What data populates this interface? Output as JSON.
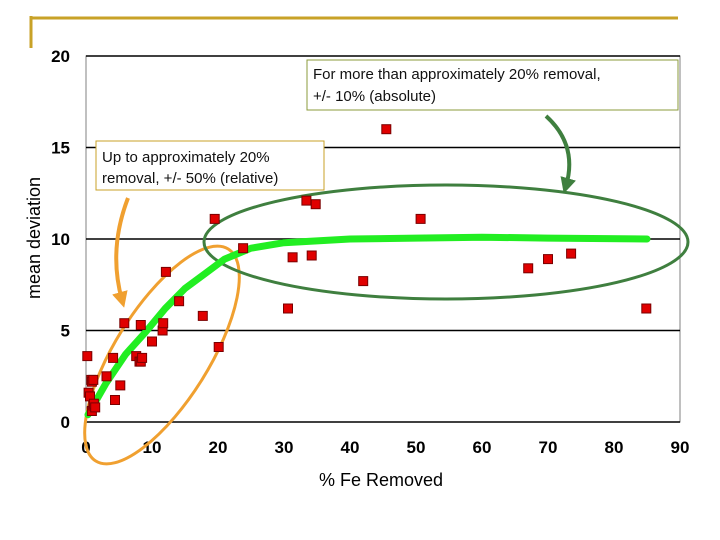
{
  "colors": {
    "accent_line": "#c8a227",
    "marker_fill": "#e00000",
    "marker_stroke": "#7a0000",
    "trend": "#22ee22",
    "ellipse_left": "#f0a030",
    "ellipse_right": "#3f7f3f",
    "arrow_left": "#f0a030",
    "arrow_right": "#3f7f3f"
  },
  "chart_data": {
    "type": "scatter",
    "title": "",
    "xlabel": "% Fe Removed",
    "ylabel": "mean deviation",
    "xlim": [
      0,
      90
    ],
    "ylim": [
      0,
      20
    ],
    "xticks": [
      0,
      10,
      20,
      30,
      40,
      50,
      60,
      70,
      80,
      90
    ],
    "xtick_labels": [
      "0",
      "10",
      "20",
      "30",
      "40",
      "50",
      "60",
      "70",
      "80",
      "90"
    ],
    "yticks": [
      0,
      5,
      10,
      15,
      20
    ],
    "ytick_labels": [
      "0",
      "5",
      "10",
      "15",
      "20"
    ],
    "grid": "horizontal",
    "series": [
      {
        "name": "mean deviation",
        "points": [
          [
            0.2,
            3.6
          ],
          [
            0.4,
            1.6
          ],
          [
            0.6,
            1.4
          ],
          [
            0.8,
            2.3
          ],
          [
            0.9,
            0.6
          ],
          [
            1.1,
            0.9
          ],
          [
            1.2,
            1.0
          ],
          [
            0.9,
            2.2
          ],
          [
            1.4,
            0.8
          ],
          [
            1.1,
            2.3
          ],
          [
            3.1,
            2.5
          ],
          [
            4.1,
            3.5
          ],
          [
            4.4,
            1.2
          ],
          [
            5.2,
            2.0
          ],
          [
            5.8,
            5.4
          ],
          [
            7.6,
            3.6
          ],
          [
            8.1,
            3.3
          ],
          [
            8.3,
            3.3
          ],
          [
            8.5,
            3.5
          ],
          [
            8.3,
            5.3
          ],
          [
            10.0,
            4.4
          ],
          [
            11.6,
            5.0
          ],
          [
            11.7,
            5.4
          ],
          [
            12.1,
            8.2
          ],
          [
            14.1,
            6.6
          ],
          [
            17.7,
            5.8
          ],
          [
            19.5,
            11.1
          ],
          [
            20.1,
            4.1
          ],
          [
            23.8,
            9.5
          ],
          [
            30.6,
            6.2
          ],
          [
            31.3,
            9.0
          ],
          [
            33.4,
            12.1
          ],
          [
            34.2,
            9.1
          ],
          [
            34.8,
            11.9
          ],
          [
            42.0,
            7.7
          ],
          [
            45.5,
            16.0
          ],
          [
            50.7,
            11.1
          ],
          [
            67.0,
            8.4
          ],
          [
            70.0,
            8.9
          ],
          [
            73.5,
            9.2
          ],
          [
            84.9,
            6.2
          ]
        ]
      }
    ],
    "trend_line": [
      [
        0.3,
        0.4
      ],
      [
        3,
        2.1
      ],
      [
        6,
        3.7
      ],
      [
        9,
        4.9
      ],
      [
        12,
        6.2
      ],
      [
        15,
        7.3
      ],
      [
        18,
        8.1
      ],
      [
        21,
        8.9
      ],
      [
        25,
        9.5
      ],
      [
        30,
        9.8
      ],
      [
        40,
        10.0
      ],
      [
        50,
        10.05
      ],
      [
        60,
        10.1
      ],
      [
        70,
        10.05
      ],
      [
        85,
        10.0
      ]
    ],
    "annotations": [
      {
        "lines": [
          "For more than approximately 20% removal,",
          "+/- 10% (absolute)"
        ]
      },
      {
        "lines": [
          "Up to approximately 20%",
          "removal,  +/- 50% (relative)"
        ]
      }
    ]
  }
}
